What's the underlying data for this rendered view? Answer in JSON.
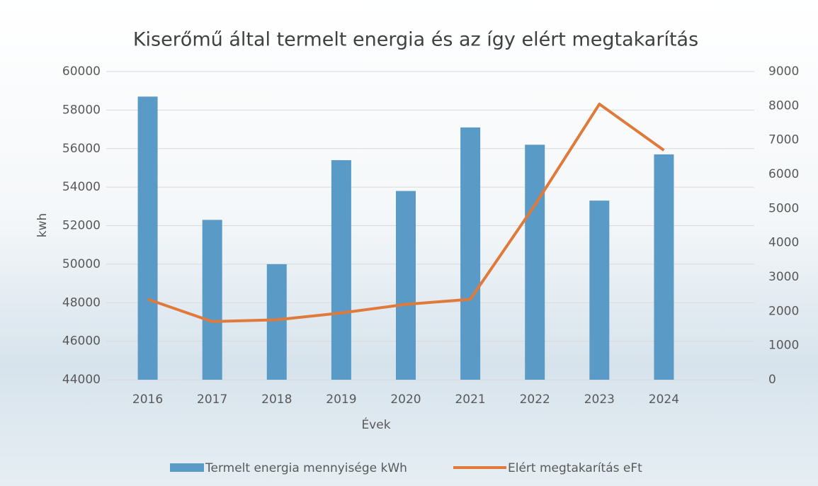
{
  "chart_data": {
    "type": "bar-line",
    "title": "Kiserőmű által termelt energia és az így elért megtakarítás",
    "xlabel": "Évek",
    "ylabel": "kwh",
    "categories": [
      "2016",
      "2017",
      "2018",
      "2019",
      "2020",
      "2021",
      "2022",
      "2023",
      "2024"
    ],
    "series": [
      {
        "name": "Termelt energia mennyisége kWh",
        "type": "bar",
        "color": "#5a9ac6",
        "values": [
          58700,
          52300,
          50000,
          55400,
          53800,
          57100,
          56200,
          53300,
          55700
        ]
      },
      {
        "name": "Elért megtakarítás eFt",
        "type": "line",
        "axis": "y2",
        "color": "#e07a3a",
        "values": [
          2350,
          1700,
          1750,
          1950,
          2200,
          2350,
          5100,
          8050,
          6700
        ]
      }
    ],
    "ylim": [
      44000,
      60000
    ],
    "yticks": [
      44000,
      46000,
      48000,
      50000,
      52000,
      54000,
      56000,
      58000,
      60000
    ],
    "y2lim": [
      0,
      9000
    ],
    "y2ticks": [
      0,
      1000,
      2000,
      3000,
      4000,
      5000,
      6000,
      7000,
      8000,
      9000
    ],
    "grid": true,
    "legend": "bottom"
  }
}
